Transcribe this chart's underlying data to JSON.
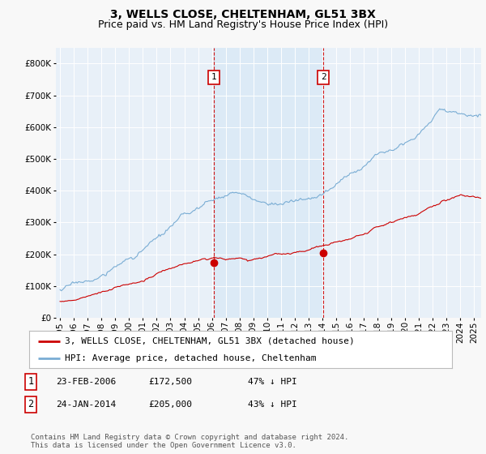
{
  "title": "3, WELLS CLOSE, CHELTENHAM, GL51 3BX",
  "subtitle": "Price paid vs. HM Land Registry's House Price Index (HPI)",
  "ylim": [
    0,
    850000
  ],
  "yticks": [
    0,
    100000,
    200000,
    300000,
    400000,
    500000,
    600000,
    700000,
    800000
  ],
  "xlim_start": 1994.7,
  "xlim_end": 2025.5,
  "xtick_years": [
    1995,
    1996,
    1997,
    1998,
    1999,
    2000,
    2001,
    2002,
    2003,
    2004,
    2005,
    2006,
    2007,
    2008,
    2009,
    2010,
    2011,
    2012,
    2013,
    2014,
    2015,
    2016,
    2017,
    2018,
    2019,
    2020,
    2021,
    2022,
    2023,
    2024,
    2025
  ],
  "sale1_x": 2006.15,
  "sale1_y": 172500,
  "sale2_x": 2014.07,
  "sale2_y": 205000,
  "red_line_color": "#cc0000",
  "blue_line_color": "#7aadd4",
  "shade_color": "#dceaf6",
  "dashed_line_color": "#cc0000",
  "background_color": "#f8f8f8",
  "plot_bg_color": "#e8f0f8",
  "grid_color": "#ffffff",
  "legend_label_red": "3, WELLS CLOSE, CHELTENHAM, GL51 3BX (detached house)",
  "legend_label_blue": "HPI: Average price, detached house, Cheltenham",
  "table_rows": [
    {
      "num": "1",
      "date": "23-FEB-2006",
      "price": "£172,500",
      "pct": "47% ↓ HPI"
    },
    {
      "num": "2",
      "date": "24-JAN-2014",
      "price": "£205,000",
      "pct": "43% ↓ HPI"
    }
  ],
  "footer": "Contains HM Land Registry data © Crown copyright and database right 2024.\nThis data is licensed under the Open Government Licence v3.0.",
  "title_fontsize": 10,
  "subtitle_fontsize": 9,
  "axis_fontsize": 7.5,
  "legend_fontsize": 8,
  "table_fontsize": 8,
  "footer_fontsize": 6.5
}
